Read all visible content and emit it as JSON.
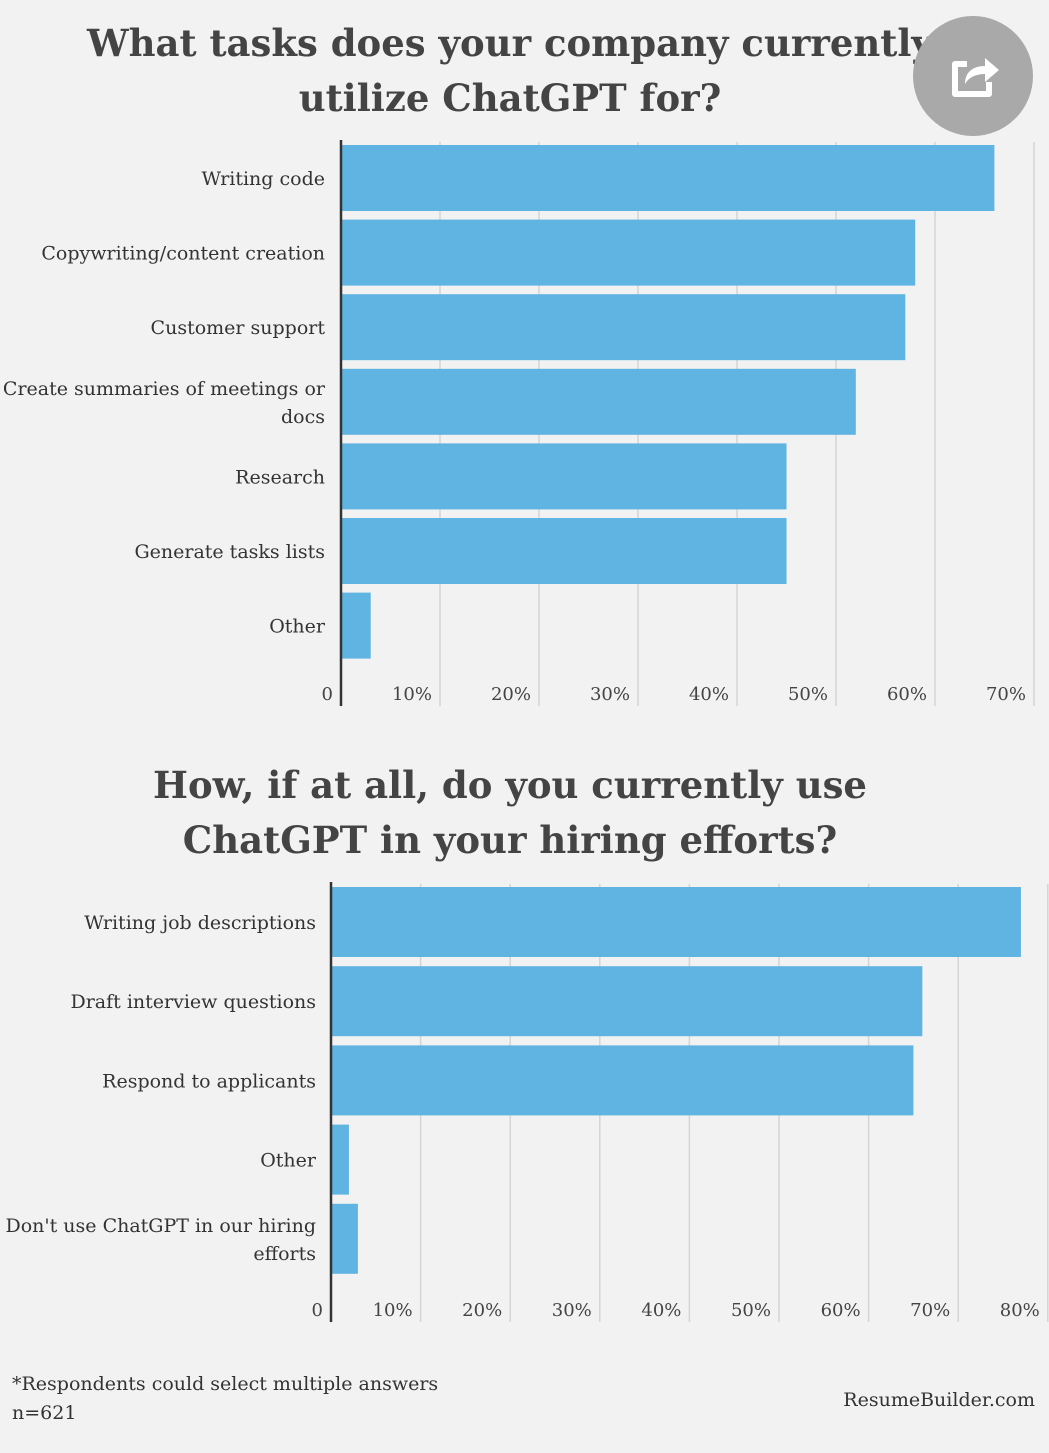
{
  "charts": [
    {
      "title": "What tasks does your company currently utilize ChatGPT for?",
      "categories": [
        [
          "Writing code"
        ],
        [
          "Copywriting/content creation"
        ],
        [
          "Customer support"
        ],
        [
          "Create summaries of meetings or",
          "docs"
        ],
        [
          "Research"
        ],
        [
          "Generate tasks lists"
        ],
        [
          "Other"
        ]
      ],
      "values": [
        66,
        58,
        57,
        52,
        45,
        45,
        3
      ],
      "ticks": [
        "0",
        "10%",
        "20%",
        "30%",
        "40%",
        "50%",
        "60%",
        "70%"
      ],
      "xlim": [
        0,
        70
      ],
      "bar_color": "#5fb4e2"
    },
    {
      "title": "How, if at all, do you currently use ChatGPT in your hiring efforts?",
      "categories": [
        [
          "Writing job descriptions"
        ],
        [
          "Draft interview questions"
        ],
        [
          "Respond to applicants"
        ],
        [
          "Other"
        ],
        [
          "Don't use ChatGPT in our hiring",
          "efforts"
        ]
      ],
      "values": [
        77,
        66,
        65,
        2,
        3
      ],
      "ticks": [
        "0",
        "10%",
        "20%",
        "30%",
        "40%",
        "50%",
        "60%",
        "70%",
        "80%"
      ],
      "xlim": [
        0,
        80
      ],
      "bar_color": "#5fb4e2"
    }
  ],
  "chart_data": [
    {
      "type": "bar",
      "orientation": "horizontal",
      "title": "What tasks does your company currently utilize ChatGPT for?",
      "categories": [
        "Writing code",
        "Copywriting/content creation",
        "Customer support",
        "Create summaries of meetings or docs",
        "Research",
        "Generate tasks lists",
        "Other"
      ],
      "values": [
        66,
        58,
        57,
        52,
        45,
        45,
        3
      ],
      "xlabel": "",
      "ylabel": "",
      "xlim": [
        0,
        70
      ],
      "unit": "%"
    },
    {
      "type": "bar",
      "orientation": "horizontal",
      "title": "How, if at all, do you currently use ChatGPT in your hiring efforts?",
      "categories": [
        "Writing job descriptions",
        "Draft interview questions",
        "Respond to applicants",
        "Other",
        "Don't use ChatGPT in our hiring efforts"
      ],
      "values": [
        77,
        66,
        65,
        2,
        3
      ],
      "xlabel": "",
      "ylabel": "",
      "xlim": [
        0,
        80
      ],
      "unit": "%"
    }
  ],
  "footer": {
    "note": "*Respondents could select multiple answers",
    "n": "n=621",
    "source": "ResumeBuilder.com"
  },
  "share": {
    "icon": "share-icon",
    "color": "#a9a9a9"
  }
}
